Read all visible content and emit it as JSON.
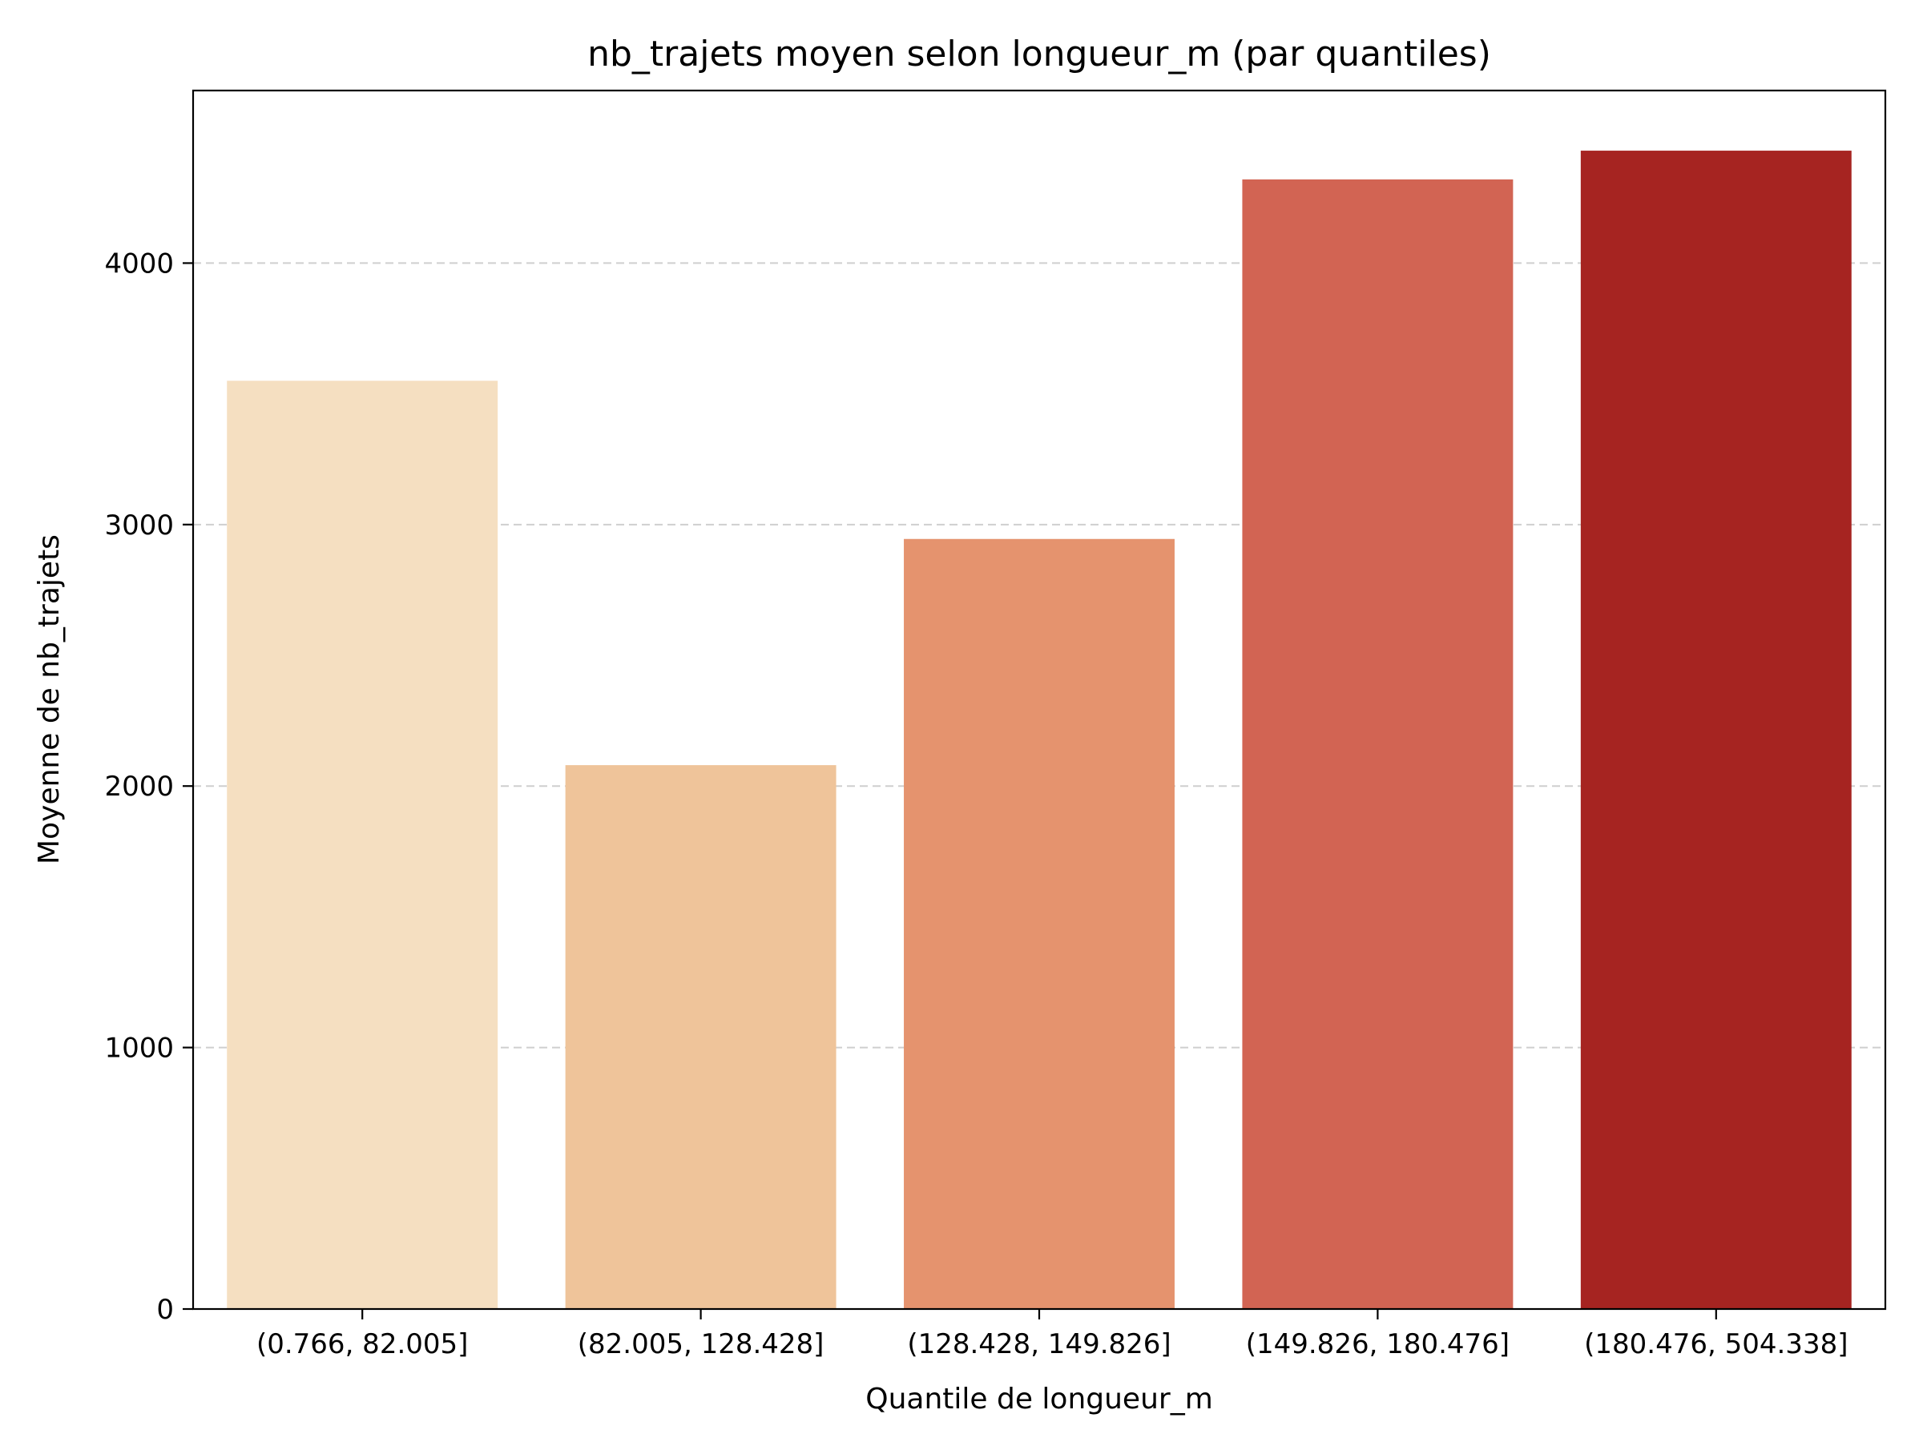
{
  "chart_data": {
    "type": "bar",
    "title": "nb_trajets moyen selon longueur_m (par quantiles)",
    "xlabel": "Quantile de longueur_m",
    "ylabel": "Moyenne de nb_trajets",
    "categories": [
      "(0.766, 82.005]",
      "(82.005, 128.428]",
      "(128.428, 149.826]",
      "(149.826, 180.476]",
      "(180.476, 504.338]"
    ],
    "values": [
      3550,
      2080,
      2945,
      4320,
      4430
    ],
    "colors": [
      "#f5dfc1",
      "#efc49a",
      "#e5936e",
      "#d26453",
      "#a62421"
    ],
    "ylim": [
      0,
      4660
    ],
    "yticks": [
      0,
      1000,
      2000,
      3000,
      4000
    ],
    "grid": "y dashed"
  }
}
